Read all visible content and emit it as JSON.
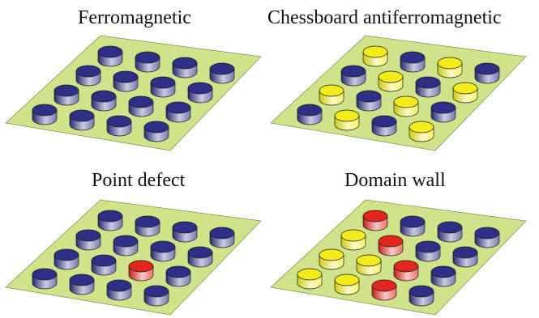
{
  "panels": [
    {
      "title": "Ferromagnetic",
      "grid": [
        [
          "blue",
          "blue",
          "blue",
          "blue"
        ],
        [
          "blue",
          "blue",
          "blue",
          "blue"
        ],
        [
          "blue",
          "blue",
          "blue",
          "blue"
        ],
        [
          "blue",
          "blue",
          "blue",
          "blue"
        ]
      ]
    },
    {
      "title": "Chessboard antiferromagnetic",
      "grid": [
        [
          "yellow",
          "blue",
          "yellow",
          "blue"
        ],
        [
          "blue",
          "yellow",
          "blue",
          "yellow"
        ],
        [
          "yellow",
          "blue",
          "yellow",
          "blue"
        ],
        [
          "blue",
          "yellow",
          "blue",
          "yellow"
        ]
      ]
    },
    {
      "title": "Point defect",
      "grid": [
        [
          "blue",
          "blue",
          "blue",
          "blue"
        ],
        [
          "blue",
          "blue",
          "blue",
          "blue"
        ],
        [
          "blue",
          "blue",
          "red",
          "blue"
        ],
        [
          "blue",
          "blue",
          "blue",
          "blue"
        ]
      ]
    },
    {
      "title": "Domain wall",
      "grid": [
        [
          "red",
          "blue",
          "blue",
          "blue"
        ],
        [
          "yellow",
          "red",
          "blue",
          "blue"
        ],
        [
          "yellow",
          "yellow",
          "red",
          "blue"
        ],
        [
          "yellow",
          "yellow",
          "red",
          "blue"
        ]
      ]
    }
  ],
  "colors": {
    "plate": "#cfe38a",
    "plate_edge": "#6f7f42",
    "blue": "#2e2f86",
    "yellow": "#f4ec1a",
    "red": "#e3251f"
  }
}
